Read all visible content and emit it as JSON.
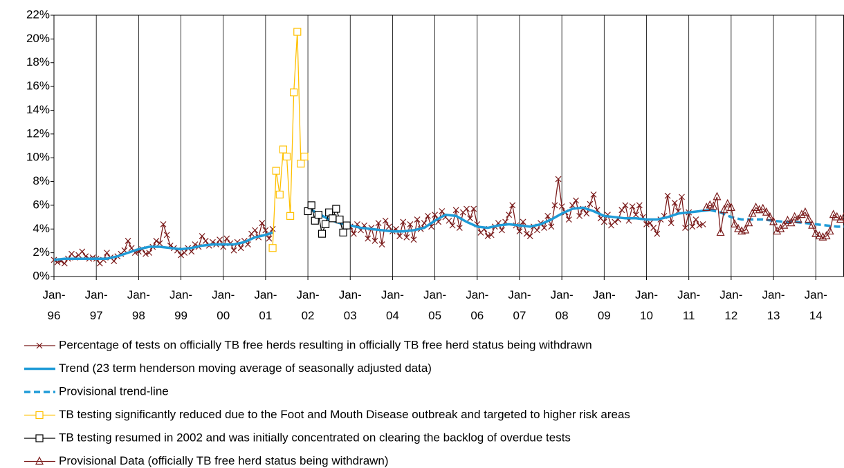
{
  "chart_data": {
    "type": "line",
    "grid": true,
    "legend": "bottom",
    "ylim": [
      0,
      22
    ],
    "yticks": [
      {
        "value": 0,
        "label": "0%"
      },
      {
        "value": 2,
        "label": "2%"
      },
      {
        "value": 4,
        "label": "4%"
      },
      {
        "value": 6,
        "label": "6%"
      },
      {
        "value": 8,
        "label": "8%"
      },
      {
        "value": 10,
        "label": "10%"
      },
      {
        "value": 12,
        "label": "12%"
      },
      {
        "value": 14,
        "label": "14%"
      },
      {
        "value": 16,
        "label": "16%"
      },
      {
        "value": 18,
        "label": "18%"
      },
      {
        "value": 20,
        "label": "20%"
      },
      {
        "value": 22,
        "label": "22%"
      }
    ],
    "xlim": [
      "Jan-96",
      "Sep-14"
    ],
    "xticks": [
      "Jan-96",
      "Jan-97",
      "Jan-98",
      "Jan-99",
      "Jan-00",
      "Jan-01",
      "Jan-02",
      "Jan-03",
      "Jan-04",
      "Jan-05",
      "Jan-06",
      "Jan-07",
      "Jan-08",
      "Jan-09",
      "Jan-10",
      "Jan-11",
      "Jan-12",
      "Jan-13",
      "Jan-14"
    ],
    "series": [
      {
        "name": "Percentage of tests on officially TB free herds resulting in officially TB free herd status being withdrawn",
        "color": "#7b1c1c",
        "marker": "cross",
        "dash": false,
        "x": [
          "Jan-96",
          "Feb-96",
          "Mar-96",
          "Apr-96",
          "May-96",
          "Jun-96",
          "Jul-96",
          "Aug-96",
          "Sep-96",
          "Oct-96",
          "Nov-96",
          "Dec-96",
          "Jan-97",
          "Feb-97",
          "Mar-97",
          "Apr-97",
          "May-97",
          "Jun-97",
          "Jul-97",
          "Aug-97",
          "Sep-97",
          "Oct-97",
          "Nov-97",
          "Dec-97",
          "Jan-98",
          "Feb-98",
          "Mar-98",
          "Apr-98",
          "May-98",
          "Jun-98",
          "Jul-98",
          "Aug-98",
          "Sep-98",
          "Oct-98",
          "Nov-98",
          "Dec-98",
          "Jan-99",
          "Feb-99",
          "Mar-99",
          "Apr-99",
          "May-99",
          "Jun-99",
          "Jul-99",
          "Aug-99",
          "Sep-99",
          "Oct-99",
          "Nov-99",
          "Dec-99",
          "Jan-00",
          "Feb-00",
          "Mar-00",
          "Apr-00",
          "May-00",
          "Jun-00",
          "Jul-00",
          "Aug-00",
          "Sep-00",
          "Oct-00",
          "Nov-00",
          "Dec-00",
          "Jan-01",
          "Feb-01",
          "Mar-01",
          "Apr-01",
          "Jan-03",
          "Feb-03",
          "Mar-03",
          "Apr-03",
          "May-03",
          "Jun-03",
          "Jul-03",
          "Aug-03",
          "Sep-03",
          "Oct-03",
          "Nov-03",
          "Dec-03",
          "Jan-04",
          "Feb-04",
          "Mar-04",
          "Apr-04",
          "May-04",
          "Jun-04",
          "Jul-04",
          "Aug-04",
          "Sep-04",
          "Oct-04",
          "Nov-04",
          "Dec-04",
          "Jan-05",
          "Feb-05",
          "Mar-05",
          "Apr-05",
          "May-05",
          "Jun-05",
          "Jul-05",
          "Aug-05",
          "Sep-05",
          "Oct-05",
          "Nov-05",
          "Dec-05",
          "Jan-06",
          "Feb-06",
          "Mar-06",
          "Apr-06",
          "May-06",
          "Jun-06",
          "Jul-06",
          "Aug-06",
          "Sep-06",
          "Oct-06",
          "Nov-06",
          "Dec-06",
          "Jan-07",
          "Feb-07",
          "Mar-07",
          "Apr-07",
          "May-07",
          "Jun-07",
          "Jul-07",
          "Aug-07",
          "Sep-07",
          "Oct-07",
          "Nov-07",
          "Dec-07",
          "Jan-08",
          "Feb-08",
          "Mar-08",
          "Apr-08",
          "May-08",
          "Jun-08",
          "Jul-08",
          "Aug-08",
          "Sep-08",
          "Oct-08",
          "Nov-08",
          "Dec-08",
          "Jan-09",
          "Feb-09",
          "Mar-09",
          "Apr-09",
          "May-09",
          "Jun-09",
          "Jul-09",
          "Aug-09",
          "Sep-09",
          "Oct-09",
          "Nov-09",
          "Dec-09",
          "Jan-10",
          "Feb-10",
          "Mar-10",
          "Apr-10",
          "May-10",
          "Jun-10",
          "Jul-10",
          "Aug-10",
          "Sep-10",
          "Oct-10",
          "Nov-10",
          "Dec-10",
          "Jan-11",
          "Feb-11",
          "Mar-11",
          "Apr-11",
          "May-11"
        ],
        "values": [
          1.4,
          1.2,
          1.3,
          1.1,
          1.5,
          1.9,
          1.6,
          1.8,
          2.1,
          1.7,
          1.5,
          1.6,
          1.5,
          1.1,
          1.4,
          2.0,
          1.6,
          1.3,
          1.7,
          1.9,
          2.2,
          3.0,
          2.4,
          2.0,
          2.1,
          2.3,
          1.9,
          2.0,
          2.5,
          3.0,
          2.8,
          4.4,
          3.5,
          2.6,
          2.4,
          2.2,
          1.8,
          2.0,
          2.4,
          2.1,
          2.7,
          2.5,
          3.4,
          3.0,
          2.6,
          2.9,
          2.7,
          3.1,
          2.5,
          3.2,
          2.8,
          2.2,
          2.9,
          2.4,
          3.0,
          2.7,
          3.6,
          3.9,
          3.3,
          4.5,
          3.9,
          3.2,
          4.0,
          null,
          4.2,
          3.6,
          4.4,
          3.9,
          4.3,
          3.2,
          4.1,
          3.0,
          4.5,
          2.7,
          4.7,
          4.2,
          3.8,
          4.0,
          3.4,
          4.6,
          3.3,
          4.4,
          3.1,
          4.8,
          4.0,
          4.5,
          5.1,
          4.2,
          5.2,
          4.6,
          5.5,
          5.0,
          4.7,
          4.3,
          5.6,
          4.1,
          5.4,
          5.7,
          4.9,
          5.7,
          4.4,
          3.7,
          4.0,
          3.4,
          3.5,
          4.2,
          4.5,
          3.9,
          4.6,
          5.2,
          6.0,
          4.3,
          3.8,
          4.6,
          3.6,
          3.4,
          4.2,
          3.9,
          4.5,
          4.1,
          5.1,
          4.2,
          6.0,
          8.2,
          5.9,
          5.4,
          4.8,
          6.0,
          6.4,
          5.1,
          5.7,
          5.3,
          6.1,
          6.9,
          5.6,
          4.9,
          4.6,
          5.2,
          4.3,
          4.6,
          4.8,
          5.6,
          6.0,
          4.7,
          5.9,
          5.2,
          6.0,
          5.0,
          4.4,
          4.5,
          4.1,
          3.6,
          4.8,
          5.1,
          6.8,
          4.5,
          6.2,
          5.5,
          6.7,
          4.1,
          5.4,
          4.2,
          4.8,
          4.3,
          4.4
        ]
      },
      {
        "name": "Trend (23 term henderson moving average of seasonally adjusted data)",
        "color": "#1f9bd7",
        "marker": "none",
        "dash": false,
        "x": [
          "Jan-96",
          "Apr-96",
          "Jul-96",
          "Oct-96",
          "Jan-97",
          "Apr-97",
          "Jul-97",
          "Oct-97",
          "Jan-98",
          "Apr-98",
          "Jul-98",
          "Oct-98",
          "Jan-99",
          "Apr-99",
          "Jul-99",
          "Oct-99",
          "Jan-00",
          "Apr-00",
          "Jul-00",
          "Oct-00",
          "Jan-01",
          "Mar-01",
          "Jul-01",
          "Feb-02",
          "Apr-02",
          "Jul-02",
          "Oct-02",
          "Jan-03",
          "Apr-03",
          "Jul-03",
          "Oct-03",
          "Jan-04",
          "Apr-04",
          "Jul-04",
          "Oct-04",
          "Jan-05",
          "Apr-05",
          "Jul-05",
          "Oct-05",
          "Jan-06",
          "Apr-06",
          "Jul-06",
          "Oct-06",
          "Jan-07",
          "Apr-07",
          "Jul-07",
          "Oct-07",
          "Jan-08",
          "Apr-08",
          "Jul-08",
          "Oct-08",
          "Jan-09",
          "Apr-09",
          "Jul-09",
          "Oct-09",
          "Jan-10",
          "Apr-10",
          "Jul-10",
          "Oct-10",
          "Jan-11",
          "Apr-11",
          "Jul-11"
        ],
        "values": [
          1.4,
          1.5,
          1.5,
          1.5,
          1.5,
          1.5,
          1.7,
          2.0,
          2.3,
          2.5,
          2.5,
          2.4,
          2.3,
          2.4,
          2.6,
          2.7,
          2.7,
          2.7,
          2.9,
          3.3,
          3.5,
          3.7,
          null,
          5.6,
          5.3,
          4.8,
          4.5,
          4.3,
          4.1,
          4.0,
          3.9,
          3.8,
          3.8,
          3.9,
          4.1,
          4.7,
          5.2,
          5.1,
          4.6,
          4.2,
          4.1,
          4.3,
          4.4,
          4.3,
          4.2,
          4.4,
          4.8,
          5.3,
          5.7,
          5.8,
          5.5,
          5.1,
          5.0,
          4.9,
          4.9,
          4.8,
          4.8,
          5.0,
          5.3,
          5.4,
          5.5,
          5.6
        ]
      },
      {
        "name": "Provisional trend-line",
        "color": "#1f9bd7",
        "marker": "none",
        "dash": true,
        "x": [
          "Jul-11",
          "Oct-11",
          "Jan-12",
          "Apr-12",
          "Jul-12",
          "Oct-12",
          "Jan-13",
          "Apr-13",
          "Jul-13",
          "Oct-13",
          "Jan-14",
          "Apr-14",
          "Jul-14",
          "Sep-14"
        ],
        "values": [
          5.6,
          5.4,
          5.0,
          4.8,
          4.8,
          4.8,
          4.7,
          4.6,
          4.6,
          4.5,
          4.4,
          4.3,
          4.2,
          4.2
        ]
      },
      {
        "name": "TB testing significantly reduced due to the Foot and Mouth Disease outbreak and targeted to higher risk areas",
        "color": "#ffc000",
        "marker": "square",
        "dash": false,
        "x": [
          "Mar-01",
          "Apr-01",
          "May-01",
          "Jun-01",
          "Jul-01",
          "Aug-01",
          "Sep-01",
          "Oct-01",
          "Nov-01",
          "Dec-01"
        ],
        "values": [
          2.4,
          8.9,
          6.9,
          10.7,
          10.1,
          5.1,
          15.5,
          20.6,
          9.5,
          10.1
        ]
      },
      {
        "name": "TB testing resumed in 2002 and was initially concentrated on clearing the backlog of overdue tests",
        "color": "#000000",
        "marker": "square",
        "dash": false,
        "x": [
          "Jan-02",
          "Feb-02",
          "Mar-02",
          "Apr-02",
          "May-02",
          "Jun-02",
          "Jul-02",
          "Aug-02",
          "Sep-02",
          "Oct-02",
          "Nov-02",
          "Dec-02"
        ],
        "values": [
          5.5,
          6.0,
          4.7,
          5.2,
          3.6,
          4.4,
          5.4,
          4.9,
          5.7,
          4.8,
          3.7,
          4.3
        ]
      },
      {
        "name": "Provisional Data (officially TB free herd status being withdrawn)",
        "color": "#7b1c1c",
        "marker": "triangle",
        "dash": false,
        "x": [
          "Jun-11",
          "Jul-11",
          "Aug-11",
          "Sep-11",
          "Oct-11",
          "Nov-11",
          "Dec-11",
          "Jan-12",
          "Feb-12",
          "Mar-12",
          "Apr-12",
          "May-12",
          "Jun-12",
          "Jul-12",
          "Aug-12",
          "Sep-12",
          "Oct-12",
          "Nov-12",
          "Dec-12",
          "Jan-13",
          "Feb-13",
          "Mar-13",
          "Apr-13",
          "May-13",
          "Jun-13",
          "Jul-13",
          "Aug-13",
          "Sep-13",
          "Oct-13",
          "Nov-13",
          "Dec-13",
          "Jan-14",
          "Feb-14",
          "Mar-14",
          "Apr-14",
          "May-14",
          "Jun-14",
          "Jul-14",
          "Aug-14",
          "Sep-14",
          "Oct-14"
        ],
        "values": [
          5.8,
          6.0,
          5.9,
          6.7,
          3.7,
          5.6,
          6.1,
          5.8,
          4.4,
          4.0,
          3.8,
          3.9,
          4.5,
          5.3,
          5.8,
          5.6,
          5.7,
          5.4,
          5.0,
          4.6,
          3.8,
          4.0,
          4.3,
          4.7,
          4.5,
          5.0,
          4.8,
          5.2,
          5.4,
          4.8,
          4.3,
          3.6,
          3.4,
          3.3,
          3.4,
          3.8,
          5.2,
          5.0,
          4.8,
          5.0,
          4.9
        ]
      }
    ]
  }
}
